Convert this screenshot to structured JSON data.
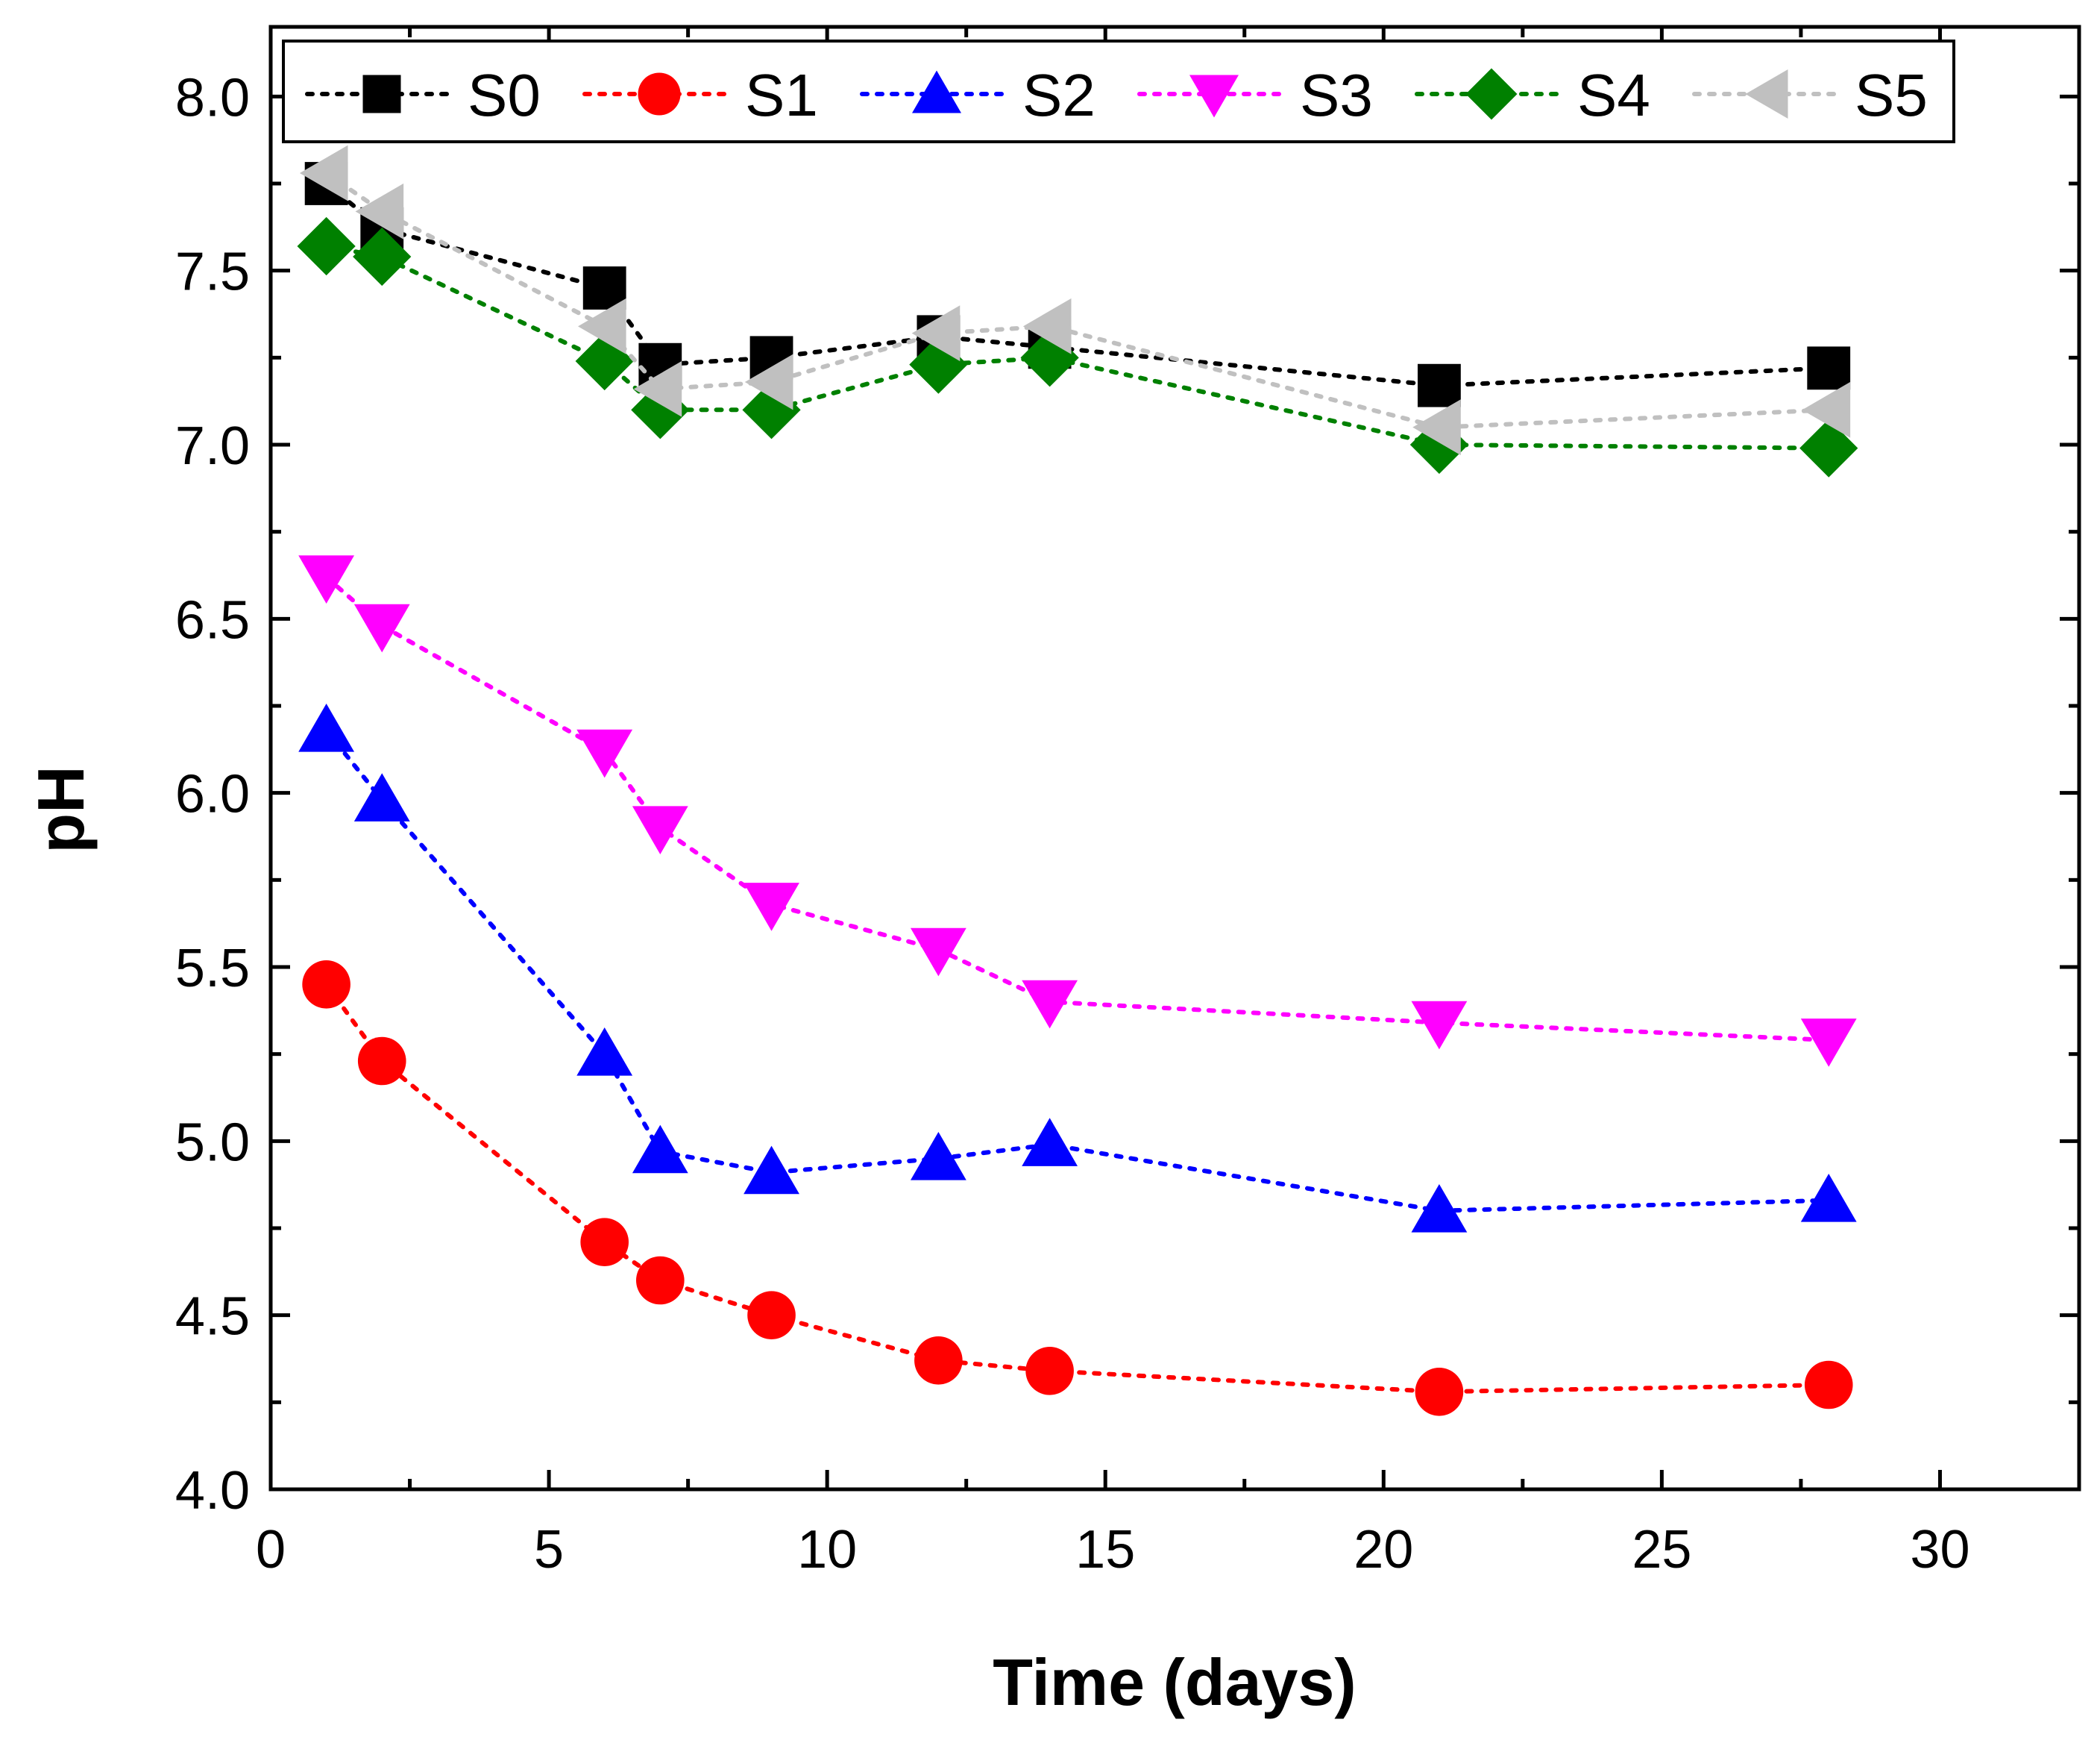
{
  "chart_data": {
    "type": "line",
    "title": "",
    "xlabel": "Time (days)",
    "ylabel": "pH",
    "xlim": [
      0,
      32.5
    ],
    "ylim": [
      4.0,
      8.2
    ],
    "x_ticks": [
      0,
      5,
      10,
      15,
      20,
      25,
      30
    ],
    "x_tick_labels": [
      "0",
      "5",
      "10",
      "15",
      "20",
      "25",
      "30"
    ],
    "y_ticks": [
      4.0,
      4.5,
      5.0,
      5.5,
      6.0,
      6.5,
      7.0,
      7.5,
      8.0
    ],
    "y_tick_labels": [
      "4.0",
      "4.5",
      "5.0",
      "5.5",
      "6.0",
      "6.5",
      "7.0",
      "7.5",
      "8.0"
    ],
    "grid": false,
    "legend_position": "top",
    "x": [
      1,
      2,
      6,
      7,
      9,
      12,
      14,
      21,
      28
    ],
    "series": [
      {
        "name": "S0",
        "marker": "square",
        "color": "#000000",
        "values": [
          7.75,
          7.62,
          7.45,
          7.23,
          7.25,
          7.31,
          7.28,
          7.17,
          7.22
        ]
      },
      {
        "name": "S1",
        "marker": "circle",
        "color": "#ff0000",
        "values": [
          5.45,
          5.23,
          4.71,
          4.6,
          4.5,
          4.37,
          4.34,
          4.28,
          4.3
        ]
      },
      {
        "name": "S2",
        "marker": "triangle-up",
        "color": "#0000ff",
        "values": [
          6.18,
          5.98,
          5.25,
          4.97,
          4.91,
          4.95,
          4.99,
          4.8,
          4.83
        ]
      },
      {
        "name": "S3",
        "marker": "triangle-down",
        "color": "#ff00ff",
        "values": [
          6.62,
          6.48,
          6.12,
          5.9,
          5.68,
          5.55,
          5.4,
          5.34,
          5.29
        ]
      },
      {
        "name": "S4",
        "marker": "diamond",
        "color": "#008000",
        "values": [
          7.57,
          7.54,
          7.24,
          7.1,
          7.1,
          7.23,
          7.25,
          7.0,
          6.99
        ]
      },
      {
        "name": "S5",
        "marker": "triangle-left",
        "color": "#c0c0c0",
        "values": [
          7.78,
          7.67,
          7.34,
          7.16,
          7.18,
          7.32,
          7.34,
          7.05,
          7.1
        ]
      }
    ]
  }
}
